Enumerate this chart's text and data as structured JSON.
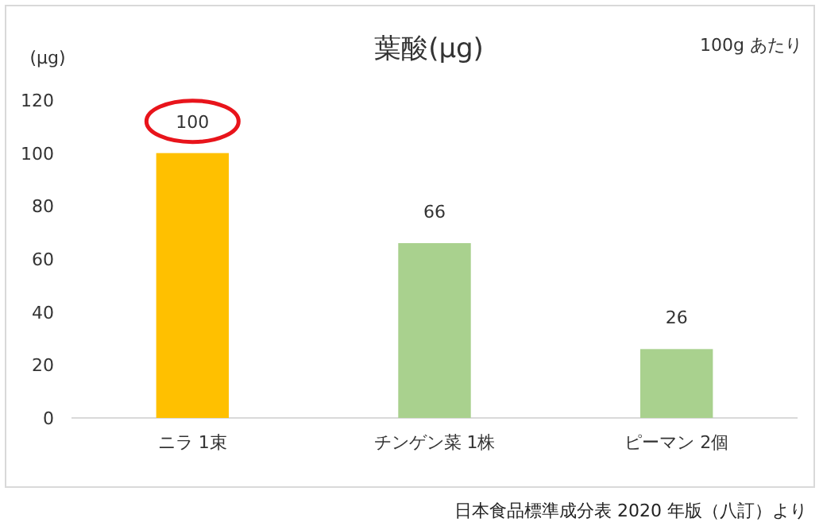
{
  "chart_data": {
    "type": "bar",
    "title": "葉酸(μg)",
    "ylabel": "(μg)",
    "annotations": [
      "100g あたり",
      "日本食品標準成分表 2020 年版（八訂）より"
    ],
    "categories": [
      "ニラ 1束",
      "チンゲン菜 1株",
      "ピーマン 2個"
    ],
    "values": [
      100,
      66,
      26
    ],
    "colors": [
      "#ffc000",
      "#a9d18e",
      "#a9d18e"
    ],
    "ylim": [
      0,
      120
    ],
    "yticks": [
      0,
      20,
      40,
      60,
      80,
      100,
      120
    ],
    "data_labels": true,
    "grid": false
  }
}
